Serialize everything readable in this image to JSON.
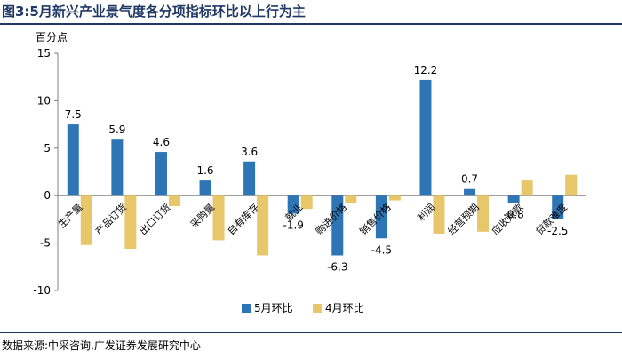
{
  "figure_title": "图3:5月新兴产业景气度各分项指标环比以上行为主",
  "source_note": "数据来源:中采咨询,广发证券发展研究中心",
  "colors": {
    "may": "#2e75b6",
    "april": "#e8c66a",
    "title": "#1f3864",
    "axis": "#7f7f7f"
  },
  "chart_data": {
    "type": "bar",
    "ylabel": "百分点",
    "ylim": [
      -10,
      15
    ],
    "yticks": [
      -10,
      -5,
      0,
      5,
      10,
      15
    ],
    "grid": false,
    "legend_position": "bottom",
    "categories": [
      "生产量",
      "产品订货",
      "出口订货",
      "采购量",
      "自有库存",
      "就业",
      "购进价格",
      "销售价格",
      "利润",
      "经营预期",
      "应收账款",
      "贷款难度"
    ],
    "series": [
      {
        "name": "5月环比",
        "color": "#2e75b6",
        "values": [
          7.5,
          5.9,
          4.6,
          1.6,
          3.6,
          -1.9,
          -6.3,
          -4.5,
          12.2,
          0.7,
          -0.8,
          -2.5
        ]
      },
      {
        "name": "4月环比",
        "color": "#e8c66a",
        "values": [
          -5.2,
          -5.6,
          -1.1,
          -4.7,
          -6.3,
          -1.4,
          -0.8,
          -0.5,
          -4.0,
          -3.8,
          1.6,
          2.2
        ]
      }
    ],
    "data_labels": [
      "7.5",
      "5.9",
      "4.6",
      "1.6",
      "3.6",
      "-1.9",
      "-6.3",
      "-4.5",
      "12.2",
      "0.7",
      "-0.8",
      "-2.5"
    ]
  }
}
